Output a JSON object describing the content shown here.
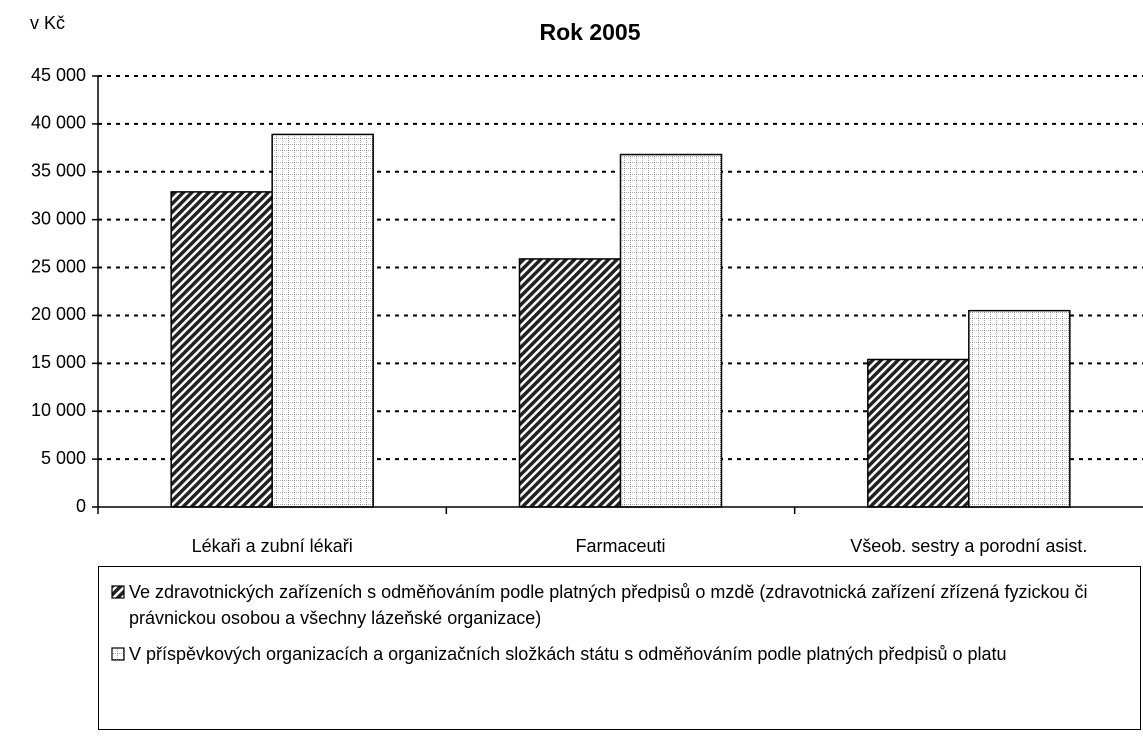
{
  "chart_data": {
    "type": "bar",
    "title": "Rok 2005",
    "y_label": "v Kč",
    "categories": [
      "Lékaři a zubní lékaři",
      "Farmaceuti",
      "Všeob. sestry a porodní asist."
    ],
    "series": [
      {
        "name": "Ve zdravotnických zařízeních s odměňováním podle platných předpisů o mzdě (zdravotnická zařízení zřízená fyzickou či právnickou osobou a všechny lázeňské organizace)",
        "color": "#222222",
        "pattern": "diagonal",
        "values": [
          32900,
          25900,
          15400
        ]
      },
      {
        "name": "V příspěvkových organizacích a organizačních složkách státu s odměňováním podle platných předpisů o platu",
        "color": "#555555",
        "pattern": "grid",
        "values": [
          38900,
          36800,
          20500
        ]
      }
    ],
    "ylim": [
      0,
      45000
    ],
    "yticks": [
      0,
      {
        "value": 5000,
        "label": "5 000"
      },
      {
        "value": 10000,
        "label": "10 000"
      },
      {
        "value": 15000,
        "label": "15 000"
      },
      {
        "value": 20000,
        "label": "20 000"
      },
      {
        "value": 25000,
        "label": "25 000"
      },
      {
        "value": 30000,
        "label": "30 000"
      },
      {
        "value": 35000,
        "label": "35 000"
      },
      {
        "value": 40000,
        "label": "40 000"
      },
      {
        "value": 45000,
        "label": "45 000"
      }
    ],
    "grid": true,
    "legend": "bottom"
  }
}
